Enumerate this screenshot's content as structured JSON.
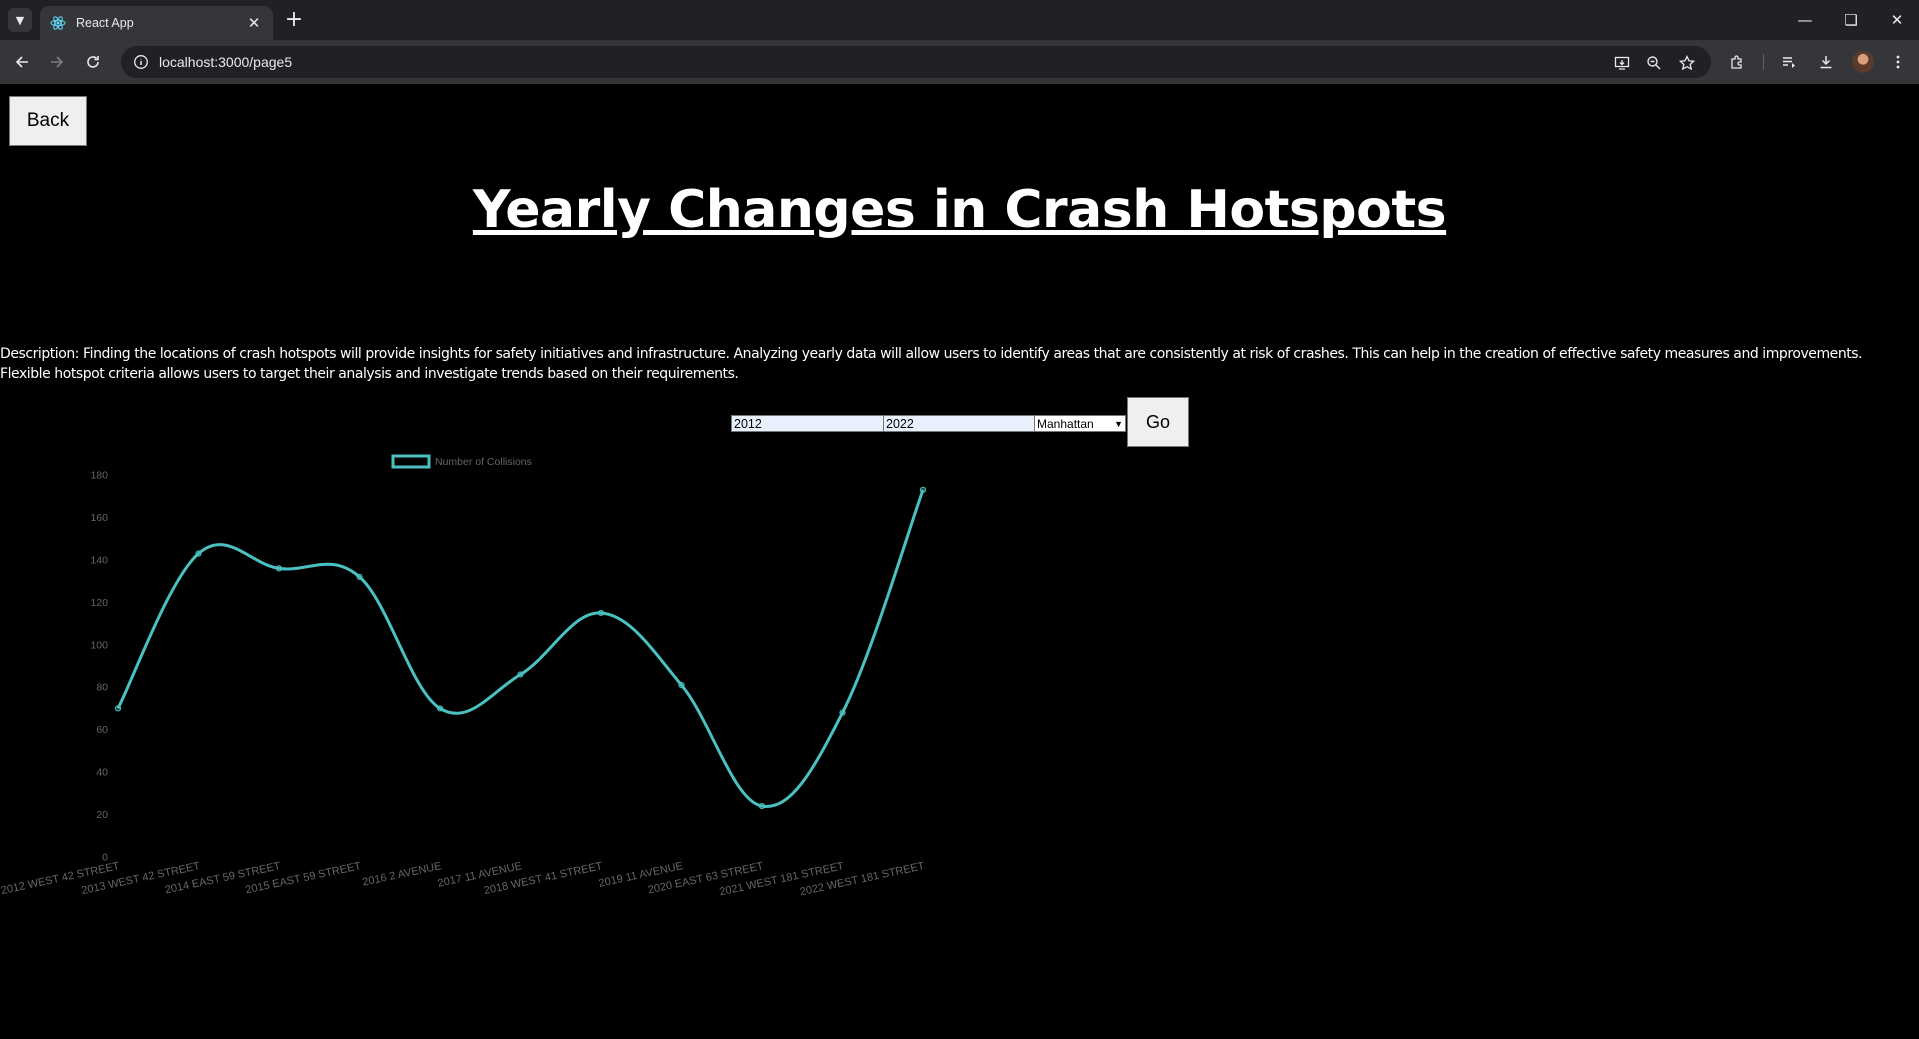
{
  "browser": {
    "tab_title": "React App",
    "url": "localhost:3000/page5"
  },
  "page": {
    "back_label": "Back",
    "title": "Yearly Changes in Crash Hotspots",
    "description": "Description: Finding the locations of crash hotspots will provide insights for safety initiatives and infrastructure. Analyzing yearly data will allow users to identify areas that are consistently at risk of crashes. This can help in the creation of effective safety measures and improvements. Flexible hotspot criteria allows users to target their analysis and investigate trends based on their requirements."
  },
  "controls": {
    "start_year": "2012",
    "end_year": "2022",
    "borough": "Manhattan",
    "go_label": "Go"
  },
  "chart_data": {
    "type": "line",
    "title": "",
    "xlabel": "",
    "ylabel": "",
    "ylim": [
      0,
      180
    ],
    "yticks": [
      0,
      20,
      40,
      60,
      80,
      100,
      120,
      140,
      160,
      180
    ],
    "grid": false,
    "legend": "top",
    "line_color": "#4bc0c0",
    "categories": [
      "2012 WEST 42 STREET",
      "2013 WEST 42 STREET",
      "2014 EAST 59 STREET",
      "2015 EAST 59 STREET",
      "2016 2 AVENUE",
      "2017 11 AVENUE",
      "2018 WEST 41 STREET",
      "2019 11 AVENUE",
      "2020 EAST 63 STREET",
      "2021 WEST 181 STREET",
      "2022 WEST 181 STREET"
    ],
    "series": [
      {
        "name": "Number of Collisions",
        "values": [
          70,
          143,
          136,
          132,
          70,
          86,
          115,
          81,
          24,
          68,
          173
        ]
      }
    ]
  }
}
